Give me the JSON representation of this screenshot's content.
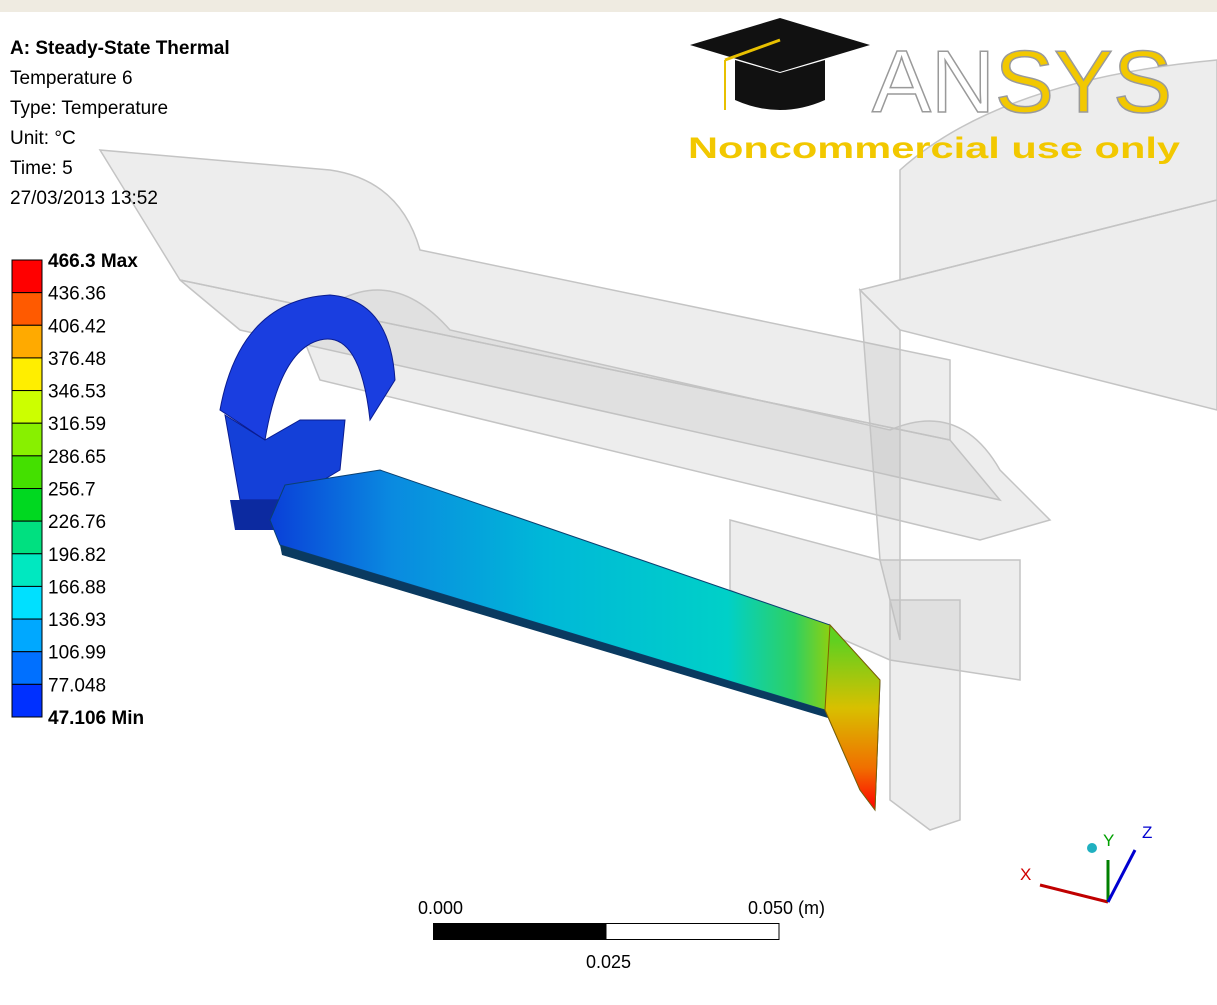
{
  "header": {
    "title": "A: Steady-State Thermal",
    "lines": [
      "Temperature 6",
      "Type: Temperature",
      "Unit: °C",
      "Time: 5",
      "27/03/2013 13:52"
    ]
  },
  "legend": {
    "labels": [
      "466.3 Max",
      "436.36",
      "406.42",
      "376.48",
      "346.53",
      "316.59",
      "286.65",
      "256.7",
      "226.76",
      "196.82",
      "166.88",
      "136.93",
      "106.99",
      "77.048",
      "47.106 Min"
    ]
  },
  "logo": {
    "brand": "ANSYS",
    "note": "Noncommercial use only"
  },
  "scale_bar": {
    "start": "0.000",
    "end": "0.050 (m)",
    "middle": "0.025"
  },
  "triad": {
    "x": "X",
    "y": "Y",
    "z": "Z"
  }
}
